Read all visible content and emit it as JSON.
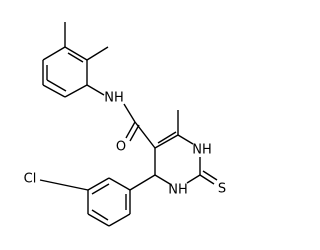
{
  "atoms": {
    "amide_nh": "NH",
    "carbonyl_o": "O",
    "ring_nh_top": "NH",
    "ring_nh_bottom": "NH",
    "thione_s": "S",
    "chlorine": "Cl"
  }
}
